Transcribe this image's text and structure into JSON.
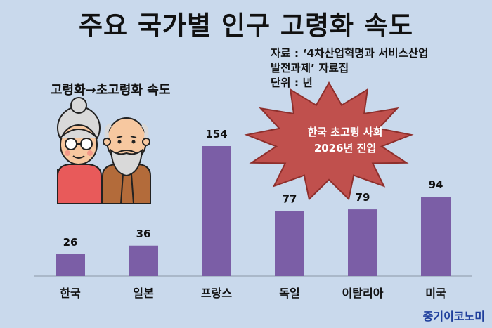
{
  "title": "주요 국가별 인구 고령화 속도",
  "source": {
    "lines": [
      "자료 : ‘4차산업혁명과 서비스산업",
      "발전과제’ 자료집",
      "단위 : 년"
    ]
  },
  "subtitle": "고령화→초고령화 속도",
  "callout": {
    "lines": [
      "한국 초고령 사회",
      "2026년 진입"
    ]
  },
  "brand": "중기이코노미",
  "colors": {
    "bar": "#7b5ea6",
    "background": "#c9d9ec",
    "callout": "#c0504d",
    "brand": "#1f3f9c"
  },
  "icons": [
    "grandmother-icon",
    "grandfather-icon"
  ],
  "chart_data": {
    "type": "bar",
    "categories": [
      "한국",
      "일본",
      "프랑스",
      "독일",
      "이탈리아",
      "미국"
    ],
    "values": [
      26,
      36,
      154,
      77,
      79,
      94
    ],
    "title": "주요 국가별 인구 고령화 속도",
    "ylabel": "",
    "xlabel": "",
    "ylim": [
      0,
      154
    ],
    "grid": false
  }
}
